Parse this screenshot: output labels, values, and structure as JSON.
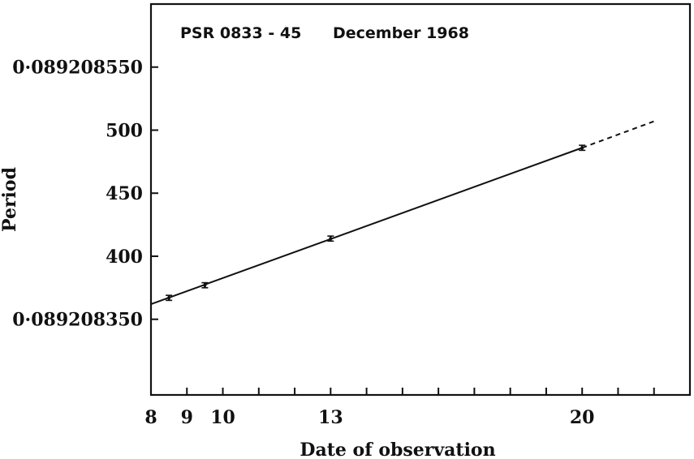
{
  "chart_data": {
    "type": "line",
    "title": "PSR 0833 - 45",
    "subtitle": "December 1968",
    "xlabel": "Date of observation",
    "ylabel": "Period",
    "xlim": [
      8,
      23
    ],
    "ylim": [
      0.08920829,
      0.0892086
    ],
    "x_tick_values": [
      8,
      9,
      10,
      11,
      12,
      13,
      14,
      15,
      16,
      17,
      18,
      19,
      20,
      21,
      22
    ],
    "x_tick_labels": [
      {
        "x": 8,
        "label": "8"
      },
      {
        "x": 9,
        "label": "9"
      },
      {
        "x": 10,
        "label": "10"
      },
      {
        "x": 13,
        "label": "13"
      },
      {
        "x": 20,
        "label": "20"
      }
    ],
    "y_tick_labels": [
      {
        "y": 0.08920855,
        "label": "0·089208550"
      },
      {
        "y": 0.0892085,
        "label": "500"
      },
      {
        "y": 0.08920845,
        "label": "450"
      },
      {
        "y": 0.0892084,
        "label": "400"
      },
      {
        "y": 0.08920835,
        "label": "0·089208350"
      }
    ],
    "grid": false,
    "series": [
      {
        "points": [
          {
            "x": 8.5,
            "y": 0.089208367,
            "err": 2e-09
          },
          {
            "x": 9.5,
            "y": 0.089208377,
            "err": 2e-09
          },
          {
            "x": 13.0,
            "y": 0.089208414,
            "err": 2e-09
          },
          {
            "x": 20.0,
            "y": 0.089208486,
            "err": 2e-09
          }
        ]
      }
    ],
    "fit_line": {
      "solid": [
        [
          8.0,
          0.089208362
        ],
        [
          20.0,
          0.089208486
        ]
      ],
      "dashed": [
        [
          20.0,
          0.089208486
        ],
        [
          22.0,
          0.089208507
        ]
      ]
    },
    "colors": {
      "ink": "#111111",
      "background": "#ffffff"
    }
  }
}
